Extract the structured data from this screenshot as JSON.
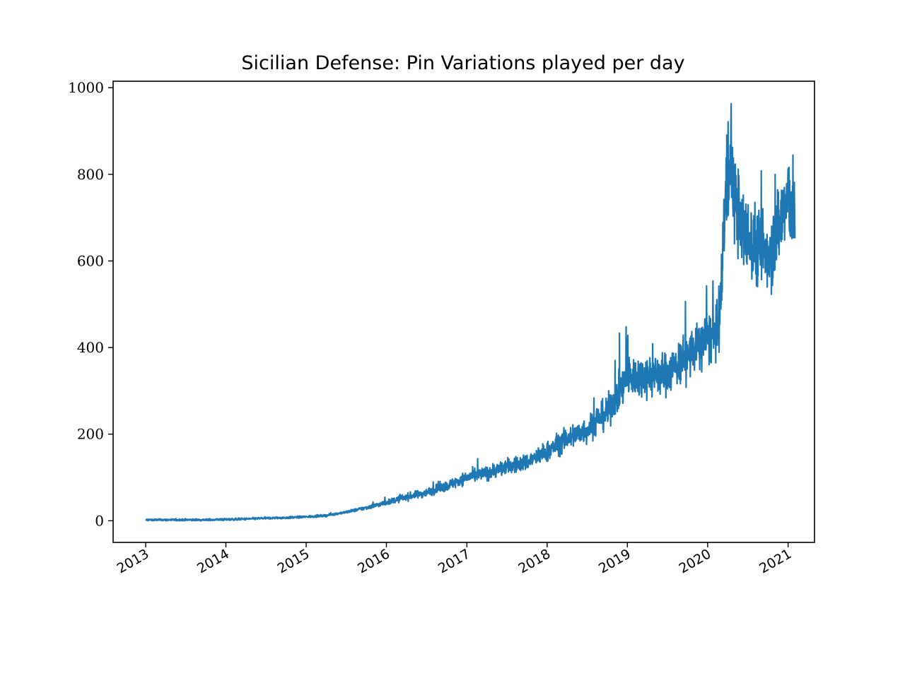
{
  "chart_data": {
    "type": "line",
    "title": "Sicilian Defense: Pin Variations played per day",
    "xlabel": "",
    "ylabel": "",
    "x_axis": {
      "type": "date",
      "range": [
        "2012-08-06",
        "2021-05-01"
      ],
      "tick_labels": [
        "2013",
        "2014",
        "2015",
        "2016",
        "2017",
        "2018",
        "2019",
        "2020",
        "2021"
      ]
    },
    "y_axis": {
      "range": [
        -50,
        1015
      ],
      "tick_values": [
        0,
        200,
        400,
        600,
        800,
        1000
      ],
      "tick_labels": [
        "0",
        "200",
        "400",
        "600",
        "800",
        "1000"
      ]
    },
    "grid": false,
    "legend": "none",
    "series": [
      {
        "color": "#1f77b4",
        "note": "approximate trend of daily game counts, with noise",
        "points": [
          [
            "2013-01-01",
            2
          ],
          [
            "2013-04-01",
            2
          ],
          [
            "2013-07-01",
            2
          ],
          [
            "2013-10-01",
            2
          ],
          [
            "2014-01-01",
            3
          ],
          [
            "2014-04-01",
            4
          ],
          [
            "2014-07-01",
            6
          ],
          [
            "2014-10-01",
            7
          ],
          [
            "2015-01-01",
            9
          ],
          [
            "2015-04-01",
            12
          ],
          [
            "2015-07-01",
            20
          ],
          [
            "2015-10-01",
            30
          ],
          [
            "2016-01-01",
            42
          ],
          [
            "2016-04-01",
            55
          ],
          [
            "2016-07-01",
            65
          ],
          [
            "2016-10-01",
            80
          ],
          [
            "2017-01-01",
            100
          ],
          [
            "2017-04-01",
            110
          ],
          [
            "2017-07-01",
            125
          ],
          [
            "2017-10-01",
            135
          ],
          [
            "2018-01-01",
            160
          ],
          [
            "2018-04-01",
            190
          ],
          [
            "2018-07-01",
            210
          ],
          [
            "2018-10-01",
            250
          ],
          [
            "2019-01-01",
            330
          ],
          [
            "2019-04-01",
            335
          ],
          [
            "2019-07-01",
            340
          ],
          [
            "2019-10-01",
            380
          ],
          [
            "2020-01-01",
            420
          ],
          [
            "2020-02-15",
            430
          ],
          [
            "2020-03-01",
            500
          ],
          [
            "2020-03-15",
            700
          ],
          [
            "2020-04-01",
            790
          ],
          [
            "2020-04-15",
            820
          ],
          [
            "2020-05-01",
            760
          ],
          [
            "2020-06-01",
            680
          ],
          [
            "2020-07-01",
            650
          ],
          [
            "2020-08-01",
            640
          ],
          [
            "2020-09-01",
            630
          ],
          [
            "2020-10-01",
            620
          ],
          [
            "2020-11-01",
            650
          ],
          [
            "2020-12-01",
            700
          ],
          [
            "2021-01-01",
            740
          ],
          [
            "2021-02-01",
            720
          ]
        ],
        "peak": [
          "2020-04-17",
          963
        ]
      }
    ]
  }
}
